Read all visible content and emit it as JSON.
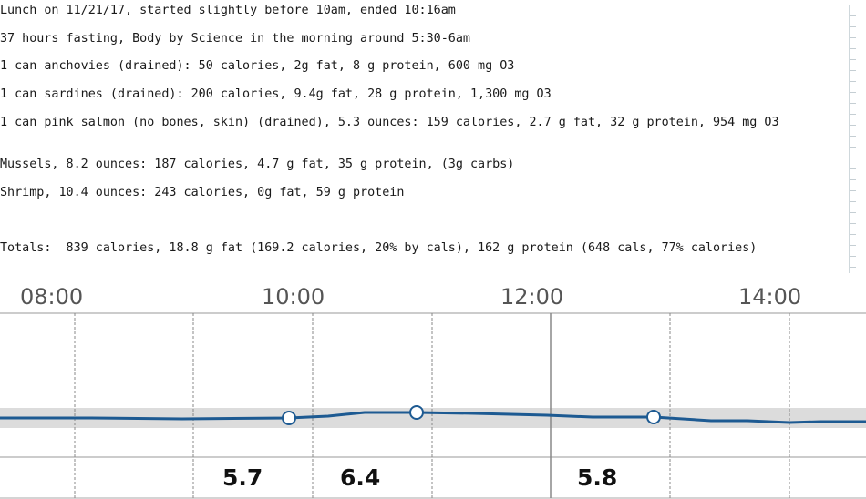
{
  "notes": {
    "lines": [
      "Lunch on 11/21/17, started slightly before 10am, ended 10:16am",
      "37 hours fasting, Body by Science in the morning around 5:30-6am",
      "1 can anchovies (drained): 50 calories, 2g fat, 8 g protein, 600 mg O3",
      "1 can sardines (drained): 200 calories, 9.4g fat, 28 g protein, 1,300 mg O3",
      "1 can pink salmon (no bones, skin) (drained), 5.3 ounces: 159 calories, 2.7 g fat, 32 g protein, 954 mg O3",
      "Mussels, 8.2 ounces: 187 calories, 4.7 g fat, 35 g protein, (3g carbs)",
      "Shrimp, 10.4 ounces: 243 calories, 0g fat, 59 g protein",
      "Totals:  839 calories, 18.8 g fat (169.2 calories, 20% by cals), 162 g protein (648 cals, 77% calories)"
    ]
  },
  "chart_data": {
    "type": "line",
    "x_tick_labels": [
      "08:00",
      "10:00",
      "12:00",
      "14:00"
    ],
    "value_labels": [
      "5.7",
      "6.4",
      "5.8"
    ],
    "colors": {
      "line": "#1d5a92",
      "target_band": "#dcdcdc",
      "grid": "#888888",
      "marker_fill": "#ffffff"
    }
  }
}
